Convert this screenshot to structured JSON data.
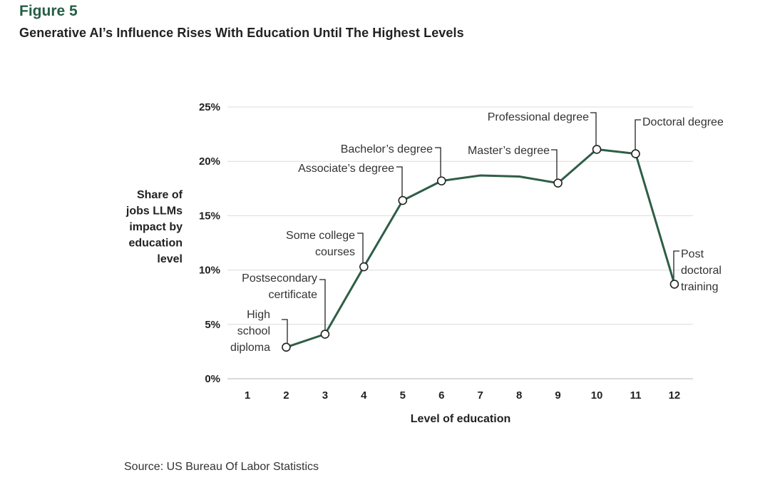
{
  "header": {
    "figure_label": "Figure 5",
    "title": "Generative AI’s Influence Rises With Education Until The Highest Levels"
  },
  "footer": {
    "source": "Source: US Bureau Of Labor Statistics"
  },
  "colors": {
    "accent": "#255e45",
    "line": "#2e5e46",
    "grid": "#dcdcdc"
  },
  "chart_data": {
    "type": "line",
    "title": "Generative AI’s Influence Rises With Education Until The Highest Levels",
    "xlabel": "Level of education",
    "ylabel_lines": [
      "Share of",
      "jobs LLMs",
      "impact by",
      "education",
      "level"
    ],
    "x_ticks": [
      "1",
      "2",
      "3",
      "4",
      "5",
      "6",
      "7",
      "8",
      "9",
      "10",
      "11",
      "12"
    ],
    "y_ticks": [
      "0%",
      "5%",
      "10%",
      "15%",
      "20%",
      "25%"
    ],
    "y_tick_values": [
      0,
      5,
      10,
      15,
      20,
      25
    ],
    "ylim": [
      0,
      25
    ],
    "xlim": [
      1,
      12
    ],
    "grid": true,
    "series": [
      {
        "name": "Share of jobs LLMs impact",
        "x": [
          2,
          3,
          4,
          5,
          6,
          7,
          8,
          9,
          10,
          11,
          12
        ],
        "values": [
          2.9,
          4.1,
          10.3,
          16.4,
          18.2,
          18.7,
          18.6,
          18.0,
          21.1,
          20.7,
          8.7
        ]
      }
    ],
    "markers_at": [
      2,
      3,
      4,
      5,
      6,
      9,
      10,
      11,
      12
    ],
    "annotations": [
      {
        "x": 2,
        "lines": [
          "High",
          "school",
          "diploma"
        ]
      },
      {
        "x": 3,
        "lines": [
          "Postsecondary",
          "certificate"
        ]
      },
      {
        "x": 4,
        "lines": [
          "Some college",
          "courses"
        ]
      },
      {
        "x": 5,
        "lines": [
          "Associate’s degree"
        ]
      },
      {
        "x": 6,
        "lines": [
          "Bachelor’s degree"
        ]
      },
      {
        "x": 9,
        "lines": [
          "Master’s degree"
        ]
      },
      {
        "x": 10,
        "lines": [
          "Professional degree"
        ]
      },
      {
        "x": 11,
        "lines": [
          "Doctoral degree"
        ]
      },
      {
        "x": 12,
        "lines": [
          "Post",
          "doctoral",
          "training"
        ]
      }
    ]
  }
}
